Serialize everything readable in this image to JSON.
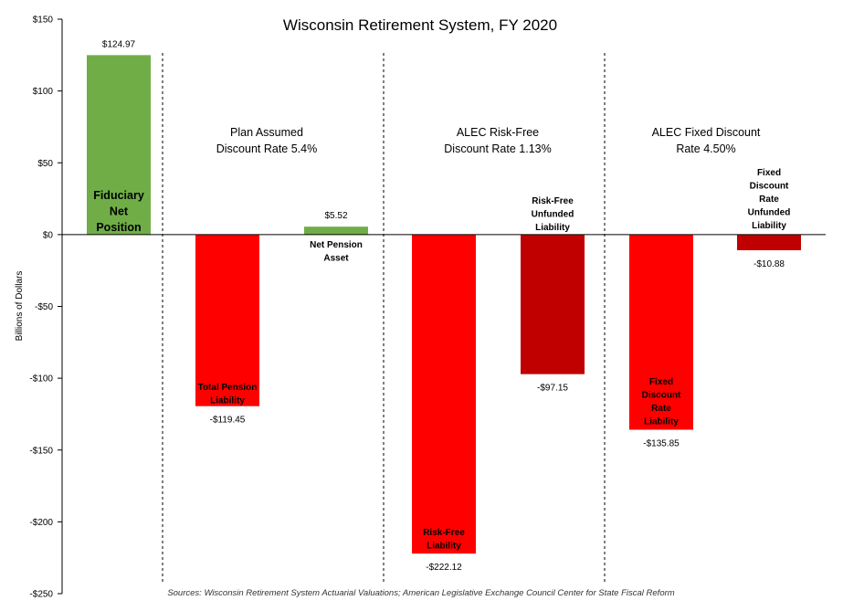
{
  "chart_data": {
    "type": "bar",
    "title": "Wisconsin Retirement System, FY 2020",
    "ylabel": "Billions of Dollars",
    "ylim": [
      -250,
      150
    ],
    "yticks": [
      150,
      100,
      50,
      0,
      -50,
      -100,
      -150,
      -200,
      -250
    ],
    "ytick_labels": [
      "$150",
      "$100",
      "$50",
      "$0",
      "-$50",
      "-$100",
      "-$150",
      "-$200",
      "-$250"
    ],
    "grid": false,
    "legend": "none",
    "colors": {
      "green": "#70ad47",
      "red": "#ff0000",
      "darkred": "#c00000"
    },
    "sections": [
      {
        "lines": [
          "Plan Assumed",
          "Discount Rate 5.4%"
        ]
      },
      {
        "lines": [
          "ALEC Risk-Free",
          "Discount Rate 1.13%"
        ]
      },
      {
        "lines": [
          "ALEC Fixed Discount",
          "Rate 4.50%"
        ]
      }
    ],
    "bars": [
      {
        "value": 124.97,
        "value_label": "$124.97",
        "color": "green",
        "label_lines": [
          "Fiduciary",
          "Net",
          "Position"
        ]
      },
      {
        "value": -119.45,
        "value_label": "-$119.45",
        "color": "red",
        "label_lines": [
          "Total Pension",
          "Liability"
        ]
      },
      {
        "value": 5.52,
        "value_label": "$5.52",
        "color": "green",
        "label_lines": [
          "Net Pension",
          "Asset"
        ]
      },
      {
        "value": -222.12,
        "value_label": "-$222.12",
        "color": "red",
        "label_lines": [
          "Risk-Free",
          "Liability"
        ]
      },
      {
        "value": -97.15,
        "value_label": "-$97.15",
        "color": "darkred",
        "label_lines": [
          "Risk-Free",
          "Unfunded",
          "Liability"
        ]
      },
      {
        "value": -135.85,
        "value_label": "-$135.85",
        "color": "red",
        "label_lines": [
          "Fixed",
          "Discount",
          "Rate",
          "Liability"
        ]
      },
      {
        "value": -10.88,
        "value_label": "-$10.88",
        "color": "darkred",
        "label_lines": [
          "Fixed",
          "Discount",
          "Rate",
          "Unfunded",
          "Liability"
        ]
      }
    ],
    "source": "Sources: Wisconsin Retirement System Actuarial Valuations; American Legislative Exchange Council Center for State Fiscal Reform"
  }
}
